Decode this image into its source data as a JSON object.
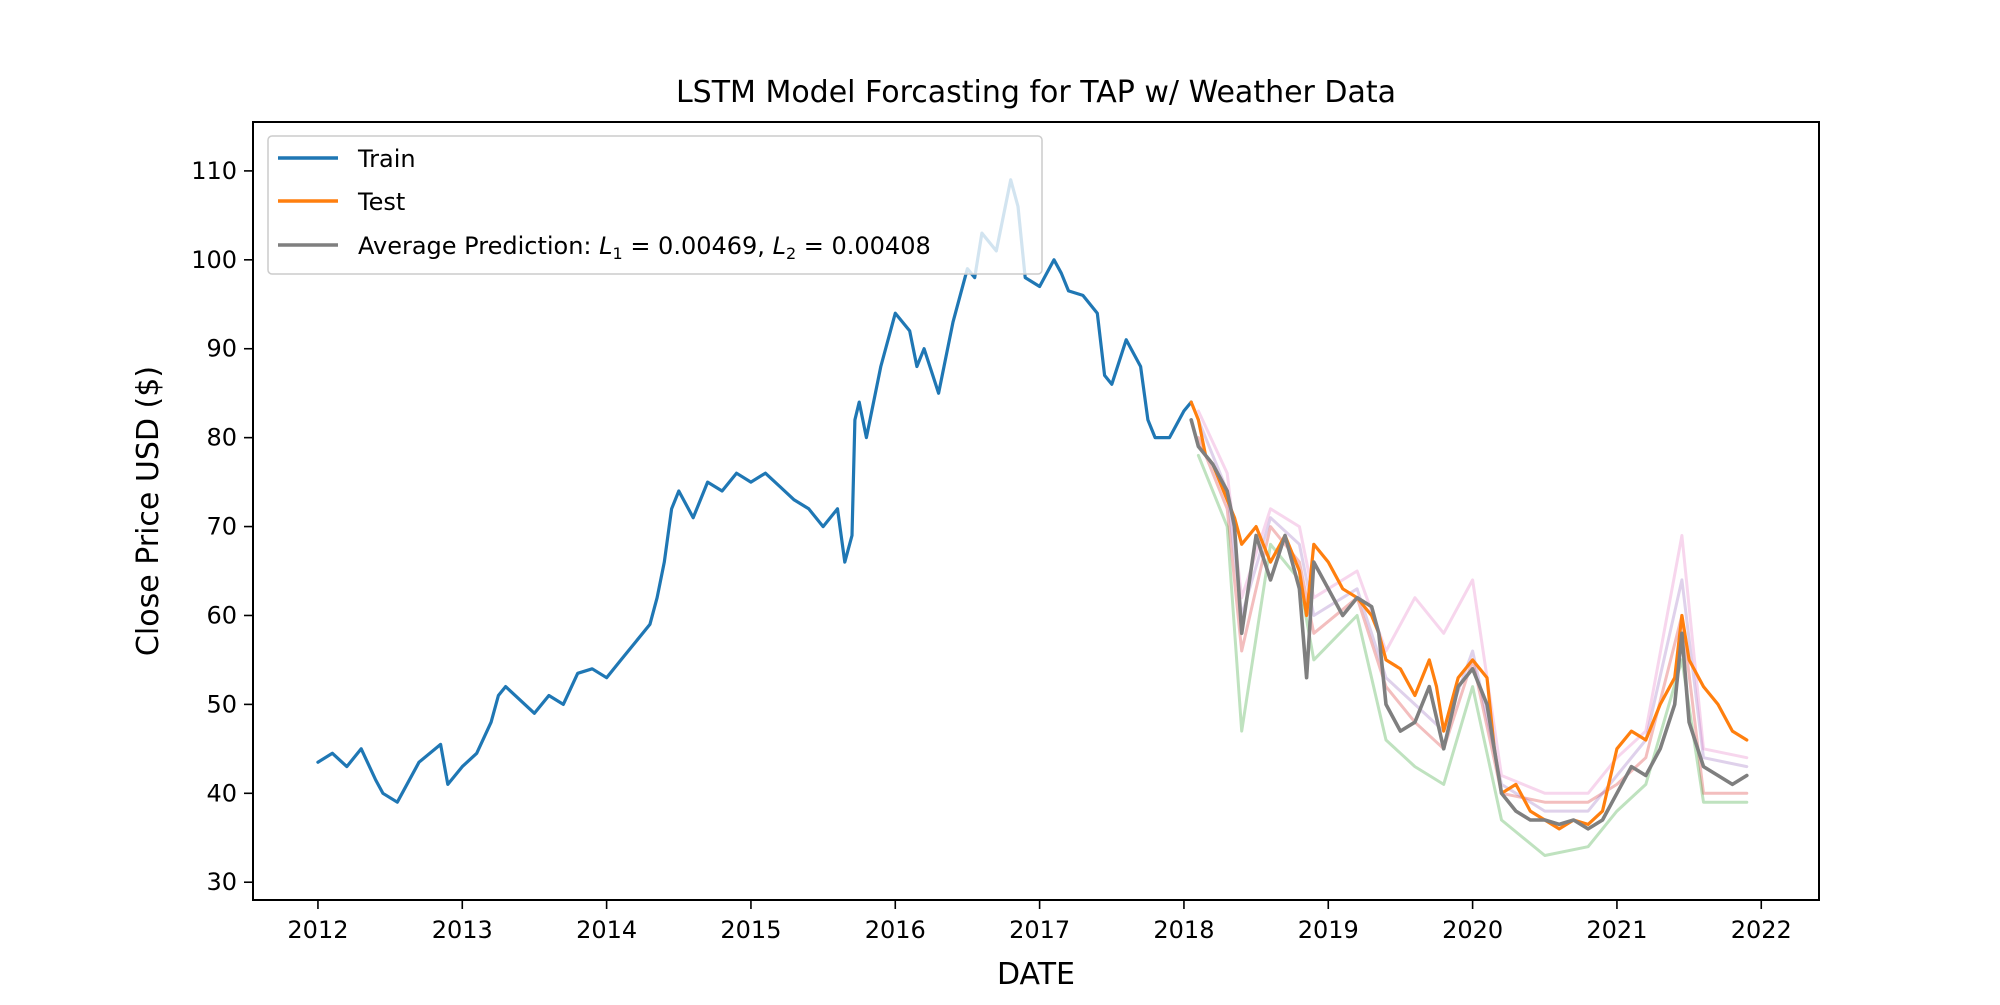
{
  "chart_data": {
    "type": "line",
    "title": "LSTM Model Forcasting for TAP w/ Weather Data",
    "xlabel": "DATE",
    "ylabel": "Close Price USD ($)",
    "xlim": [
      2011.55,
      2022.4
    ],
    "ylim": [
      28.0,
      115.5
    ],
    "xticks": [
      2012,
      2013,
      2014,
      2015,
      2016,
      2017,
      2018,
      2019,
      2020,
      2021,
      2022
    ],
    "xtick_labels": [
      "2012",
      "2013",
      "2014",
      "2015",
      "2016",
      "2017",
      "2018",
      "2019",
      "2020",
      "2021",
      "2022"
    ],
    "yticks": [
      30,
      40,
      50,
      60,
      70,
      80,
      90,
      100,
      110
    ],
    "ytick_labels": [
      "30",
      "40",
      "50",
      "60",
      "70",
      "80",
      "90",
      "100",
      "110"
    ],
    "grid": false,
    "legend_position": "top-left",
    "legend": {
      "train": "Train",
      "test": "Test",
      "avg_prefix": "Average Prediction: ",
      "l1_symbol": "L",
      "l1_sub": "1",
      "l1_value": " = 0.00469, ",
      "l2_symbol": "L",
      "l2_sub": "2",
      "l2_value": " = 0.00408"
    },
    "colors": {
      "train": "#1f77b4",
      "test": "#ff7f0e",
      "average": "#7f7f7f",
      "pred_red": "#d62728",
      "pred_green": "#2ca02c",
      "pred_purple": "#9467bd",
      "pred_pink": "#e377c2"
    },
    "series": [
      {
        "name": "Train",
        "x": [
          2012.0,
          2012.1,
          2012.2,
          2012.3,
          2012.4,
          2012.45,
          2012.55,
          2012.7,
          2012.85,
          2012.9,
          2013.0,
          2013.1,
          2013.2,
          2013.25,
          2013.3,
          2013.4,
          2013.5,
          2013.6,
          2013.7,
          2013.8,
          2013.9,
          2014.0,
          2014.1,
          2014.2,
          2014.3,
          2014.35,
          2014.4,
          2014.45,
          2014.5,
          2014.6,
          2014.7,
          2014.8,
          2014.9,
          2015.0,
          2015.1,
          2015.2,
          2015.3,
          2015.4,
          2015.5,
          2015.6,
          2015.65,
          2015.7,
          2015.72,
          2015.75,
          2015.8,
          2015.9,
          2016.0,
          2016.1,
          2016.15,
          2016.2,
          2016.3,
          2016.4,
          2016.5,
          2016.55,
          2016.6,
          2016.7,
          2016.75,
          2016.8,
          2016.85,
          2016.9,
          2017.0,
          2017.1,
          2017.15,
          2017.2,
          2017.3,
          2017.4,
          2017.45,
          2017.5,
          2017.6,
          2017.7,
          2017.75,
          2017.8,
          2017.9,
          2018.0,
          2018.05
        ],
        "values": [
          43.5,
          44.5,
          43.0,
          45.0,
          41.5,
          40.0,
          39.0,
          43.5,
          45.5,
          41.0,
          43.0,
          44.5,
          48.0,
          51.0,
          52.0,
          50.5,
          49.0,
          51.0,
          50.0,
          53.5,
          54.0,
          53.0,
          55.0,
          57.0,
          59.0,
          62.0,
          66.0,
          72.0,
          74.0,
          71.0,
          75.0,
          74.0,
          76.0,
          75.0,
          76.0,
          74.5,
          73.0,
          72.0,
          70.0,
          72.0,
          66.0,
          69.0,
          82.0,
          84.0,
          80.0,
          88.0,
          94.0,
          92.0,
          88.0,
          90.0,
          85.0,
          93.0,
          99.0,
          98.0,
          103.0,
          101.0,
          105.0,
          109.0,
          106.0,
          98.0,
          97.0,
          100.0,
          98.5,
          96.5,
          96.0,
          94.0,
          87.0,
          86.0,
          91.0,
          88.0,
          82.0,
          80.0,
          80.0,
          83.0,
          84.0
        ]
      },
      {
        "name": "Test",
        "x": [
          2018.05,
          2018.1,
          2018.15,
          2018.2,
          2018.25,
          2018.3,
          2018.35,
          2018.4,
          2018.5,
          2018.6,
          2018.7,
          2018.8,
          2018.85,
          2018.9,
          2019.0,
          2019.1,
          2019.2,
          2019.3,
          2019.35,
          2019.4,
          2019.5,
          2019.6,
          2019.7,
          2019.75,
          2019.8,
          2019.9,
          2020.0,
          2020.1,
          2020.15,
          2020.2,
          2020.3,
          2020.4,
          2020.5,
          2020.6,
          2020.7,
          2020.8,
          2020.9,
          2021.0,
          2021.1,
          2021.2,
          2021.3,
          2021.4,
          2021.45,
          2021.5,
          2021.6,
          2021.7,
          2021.8,
          2021.9
        ],
        "values": [
          84.0,
          82.0,
          78.0,
          77.0,
          75.0,
          73.0,
          71.0,
          68.0,
          70.0,
          66.0,
          69.0,
          65.0,
          60.0,
          68.0,
          66.0,
          63.0,
          62.0,
          60.0,
          58.0,
          55.0,
          54.0,
          51.0,
          55.0,
          52.0,
          47.0,
          53.0,
          55.0,
          53.0,
          45.0,
          40.0,
          41.0,
          38.0,
          37.0,
          36.0,
          37.0,
          36.5,
          38.0,
          45.0,
          47.0,
          46.0,
          50.0,
          53.0,
          60.0,
          55.0,
          52.0,
          50.0,
          47.0,
          46.0
        ]
      },
      {
        "name": "Average Prediction",
        "x": [
          2018.05,
          2018.1,
          2018.2,
          2018.3,
          2018.35,
          2018.4,
          2018.5,
          2018.6,
          2018.7,
          2018.8,
          2018.85,
          2018.9,
          2019.0,
          2019.1,
          2019.2,
          2019.3,
          2019.35,
          2019.4,
          2019.5,
          2019.6,
          2019.7,
          2019.8,
          2019.9,
          2020.0,
          2020.1,
          2020.2,
          2020.3,
          2020.4,
          2020.5,
          2020.6,
          2020.7,
          2020.8,
          2020.9,
          2021.0,
          2021.1,
          2021.2,
          2021.3,
          2021.4,
          2021.45,
          2021.5,
          2021.6,
          2021.7,
          2021.8,
          2021.9
        ],
        "values": [
          82.0,
          79.0,
          77.0,
          74.0,
          70.0,
          58.0,
          69.0,
          64.0,
          69.0,
          63.0,
          53.0,
          66.0,
          63.0,
          60.0,
          62.0,
          61.0,
          58.0,
          50.0,
          47.0,
          48.0,
          52.0,
          45.0,
          52.0,
          54.0,
          50.0,
          40.0,
          38.0,
          37.0,
          37.0,
          36.5,
          37.0,
          36.0,
          37.0,
          40.0,
          43.0,
          42.0,
          45.0,
          50.0,
          58.0,
          48.0,
          43.0,
          42.0,
          41.0,
          42.0
        ]
      },
      {
        "name": "",
        "x": [
          2018.1,
          2018.3,
          2018.4,
          2018.6,
          2018.8,
          2018.9,
          2019.2,
          2019.4,
          2019.6,
          2019.8,
          2020.0,
          2020.2,
          2020.5,
          2020.8,
          2021.0,
          2021.2,
          2021.45,
          2021.6,
          2021.9
        ],
        "values": [
          80.0,
          72.0,
          56.0,
          70.0,
          66.0,
          58.0,
          62.0,
          52.0,
          48.0,
          45.0,
          55.0,
          40.0,
          39.0,
          39.0,
          41.0,
          44.0,
          60.0,
          40.0,
          40.0
        ]
      },
      {
        "name": "",
        "x": [
          2018.1,
          2018.3,
          2018.4,
          2018.6,
          2018.8,
          2018.9,
          2019.2,
          2019.4,
          2019.6,
          2019.8,
          2020.0,
          2020.2,
          2020.5,
          2020.8,
          2021.0,
          2021.2,
          2021.45,
          2021.6,
          2021.9
        ],
        "values": [
          78.0,
          70.0,
          47.0,
          68.0,
          64.0,
          55.0,
          60.0,
          46.0,
          43.0,
          41.0,
          52.0,
          37.0,
          33.0,
          34.0,
          38.0,
          41.0,
          55.0,
          39.0,
          39.0
        ]
      },
      {
        "name": "",
        "x": [
          2018.1,
          2018.3,
          2018.4,
          2018.6,
          2018.8,
          2018.9,
          2019.2,
          2019.4,
          2019.6,
          2019.8,
          2020.0,
          2020.2,
          2020.5,
          2020.8,
          2021.0,
          2021.2,
          2021.45,
          2021.6,
          2021.9
        ],
        "values": [
          82.0,
          74.0,
          60.0,
          71.0,
          68.0,
          60.0,
          63.0,
          53.0,
          50.0,
          47.0,
          56.0,
          41.0,
          38.0,
          38.0,
          42.0,
          46.0,
          64.0,
          44.0,
          43.0
        ]
      },
      {
        "name": "",
        "x": [
          2018.1,
          2018.3,
          2018.4,
          2018.6,
          2018.8,
          2018.9,
          2019.2,
          2019.4,
          2019.6,
          2019.8,
          2020.0,
          2020.2,
          2020.5,
          2020.8,
          2021.0,
          2021.2,
          2021.45,
          2021.6,
          2021.9
        ],
        "values": [
          83.0,
          76.0,
          62.0,
          72.0,
          70.0,
          62.0,
          65.0,
          56.0,
          62.0,
          58.0,
          64.0,
          42.0,
          40.0,
          40.0,
          44.0,
          47.0,
          69.0,
          45.0,
          44.0
        ]
      }
    ]
  }
}
